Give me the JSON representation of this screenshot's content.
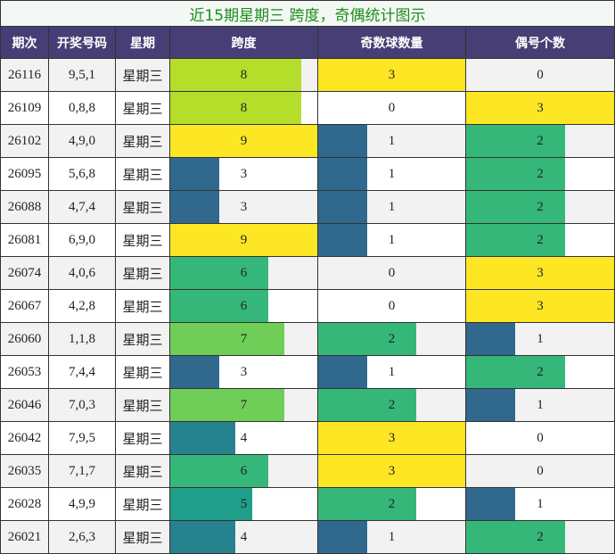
{
  "title": "近15期星期三 跨度，奇偶统计图示",
  "table": {
    "headers": [
      "期次",
      "开奖号码",
      "星期",
      "跨度",
      "奇数球数量",
      "偶号个数"
    ],
    "bar_colors": [
      "#440154",
      "#482878",
      "#3e4989",
      "#31688e",
      "#26828e",
      "#1f9e89",
      "#35b779",
      "#6ece58",
      "#b5de2b",
      "#fde725"
    ],
    "rows": [
      [
        26116,
        "9,5,1",
        "星期三",
        8,
        3,
        0
      ],
      [
        26109,
        "0,8,8",
        "星期三",
        8,
        0,
        3
      ],
      [
        26102,
        "4,9,0",
        "星期三",
        9,
        1,
        2
      ],
      [
        26095,
        "5,6,8",
        "星期三",
        3,
        1,
        2
      ],
      [
        26088,
        "4,7,4",
        "星期三",
        3,
        1,
        2
      ],
      [
        26081,
        "6,9,0",
        "星期三",
        9,
        1,
        2
      ],
      [
        26074,
        "4,0,6",
        "星期三",
        6,
        0,
        3
      ],
      [
        26067,
        "4,2,8",
        "星期三",
        6,
        0,
        3
      ],
      [
        26060,
        "1,1,8",
        "星期三",
        7,
        2,
        1
      ],
      [
        26053,
        "7,4,4",
        "星期三",
        3,
        1,
        2
      ],
      [
        26046,
        "7,0,3",
        "星期三",
        7,
        2,
        1
      ],
      [
        26042,
        "7,9,5",
        "星期三",
        4,
        3,
        0
      ],
      [
        26035,
        "7,1,7",
        "星期三",
        6,
        3,
        0
      ],
      [
        26028,
        "4,9,9",
        "星期三",
        5,
        2,
        1
      ],
      [
        26021,
        "2,6,3",
        "星期三",
        4,
        1,
        2
      ]
    ]
  }
}
